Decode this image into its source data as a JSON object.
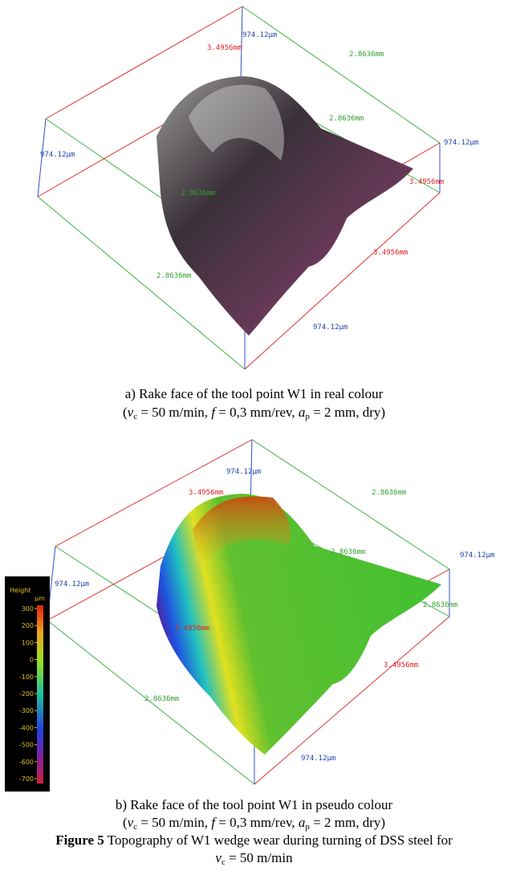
{
  "panel_a": {
    "box_labels": [
      "3.4956mm",
      "974.12µm",
      "2.8636mm",
      "2.8636mm",
      "974.12µm",
      "974.12µm",
      "2.8636mm",
      "3.4956mm",
      "3.4956mm",
      "2.8636mm",
      "974.12µm"
    ],
    "caption": {
      "line1": "a) Rake face of the tool point W1 in real colour",
      "line2": [
        "(",
        "v",
        "c",
        " = 50 m/min, ",
        "f",
        " = 0,3 mm/rev, ",
        "a",
        "p",
        " = 2 mm, dry)"
      ]
    }
  },
  "panel_b": {
    "box_labels": [
      "974.12µm",
      "3.4956mm",
      "2.8636mm",
      "2.8636mm",
      "974.12µm",
      "974.12µm",
      "2.8636mm",
      "3.4956mm",
      "3.4956mm",
      "2.8636mm",
      "974.12µm"
    ],
    "caption": {
      "line1": "b) Rake face of the tool point W1 in pseudo colour",
      "line2": [
        "(",
        "v",
        "c",
        " = 50 m/min, ",
        "f",
        " = 0,3 mm/rev, ",
        "a",
        "p",
        " = 2 mm, dry)"
      ]
    }
  },
  "colorbar": {
    "title": "Height",
    "unit": "µm",
    "ticks": [
      300,
      200,
      100,
      0,
      -100,
      -200,
      -300,
      -400,
      -500,
      -600,
      -700
    ]
  },
  "figure_caption": {
    "label": "Figure 5",
    "text": " Topography of W1 wedge wear during turning of DSS steel for",
    "line2": [
      "v",
      "c",
      " = 50 m/min"
    ]
  }
}
